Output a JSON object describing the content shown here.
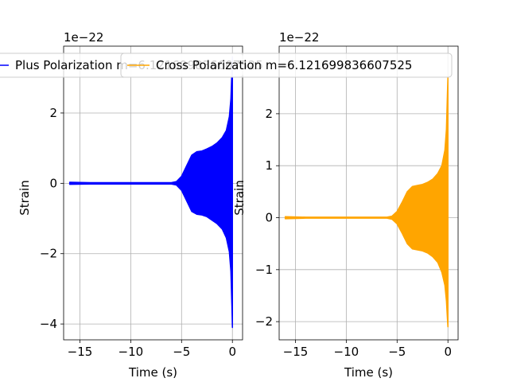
{
  "chart_data": [
    {
      "type": "line",
      "title": "",
      "xlabel": "Time (s)",
      "ylabel": "Strain",
      "y_offset_label": "1e−22",
      "xlim": [
        -16.6,
        1.0
      ],
      "ylim": [
        -4.45,
        3.9
      ],
      "xticks": [
        -15,
        -10,
        -5,
        0
      ],
      "yticks": [
        -4,
        -2,
        0,
        2
      ],
      "grid": true,
      "legend": {
        "placement": "top",
        "entries": [
          "Plus Polarization m=6.121699836607525"
        ]
      },
      "series": [
        {
          "name": "Plus Polarization m=6.121699836607525",
          "color": "#0000ff",
          "x": [
            -16.0,
            -14.0,
            -12.0,
            -10.0,
            -8.0,
            -6.0,
            -5.5,
            -5.0,
            -4.5,
            -4.0,
            -3.5,
            -3.0,
            -2.5,
            -2.0,
            -1.5,
            -1.0,
            -0.6,
            -0.3,
            -0.15,
            -0.05,
            0.0
          ],
          "upper": [
            0.03,
            0.02,
            0.02,
            0.02,
            0.02,
            0.02,
            0.05,
            0.2,
            0.5,
            0.8,
            0.9,
            0.92,
            0.98,
            1.05,
            1.15,
            1.3,
            1.5,
            1.9,
            2.4,
            3.2,
            3.6
          ],
          "lower": [
            -0.03,
            -0.02,
            -0.02,
            -0.02,
            -0.02,
            -0.02,
            -0.05,
            -0.2,
            -0.5,
            -0.8,
            -0.88,
            -0.9,
            -0.95,
            -1.05,
            -1.15,
            -1.3,
            -1.55,
            -1.95,
            -2.5,
            -3.5,
            -4.1
          ]
        }
      ]
    },
    {
      "type": "line",
      "title": "",
      "xlabel": "Time (s)",
      "ylabel": "Strain",
      "y_offset_label": "1e−22",
      "xlim": [
        -16.6,
        1.0
      ],
      "ylim": [
        -2.35,
        3.3
      ],
      "xticks": [
        -15,
        -10,
        -5,
        0
      ],
      "yticks": [
        -2,
        -1,
        0,
        1,
        2
      ],
      "grid": true,
      "legend": {
        "placement": "top",
        "entries": [
          "Cross Polarization m=6.121699836607525"
        ]
      },
      "series": [
        {
          "name": "Cross Polarization m=6.121699836607525",
          "color": "#ffa500",
          "x": [
            -16.0,
            -14.0,
            -12.0,
            -10.0,
            -8.0,
            -6.0,
            -5.5,
            -5.0,
            -4.5,
            -4.0,
            -3.5,
            -3.0,
            -2.5,
            -2.0,
            -1.5,
            -1.0,
            -0.6,
            -0.3,
            -0.15,
            -0.05,
            0.0
          ],
          "upper": [
            0.02,
            0.01,
            0.01,
            0.01,
            0.01,
            0.01,
            0.03,
            0.12,
            0.3,
            0.5,
            0.6,
            0.62,
            0.64,
            0.68,
            0.74,
            0.85,
            1.0,
            1.3,
            1.7,
            2.4,
            2.7
          ],
          "lower": [
            -0.02,
            -0.01,
            -0.01,
            -0.01,
            -0.01,
            -0.01,
            -0.03,
            -0.12,
            -0.3,
            -0.5,
            -0.6,
            -0.62,
            -0.64,
            -0.68,
            -0.75,
            -0.86,
            -1.05,
            -1.3,
            -1.6,
            -1.95,
            -2.1
          ]
        }
      ]
    }
  ]
}
